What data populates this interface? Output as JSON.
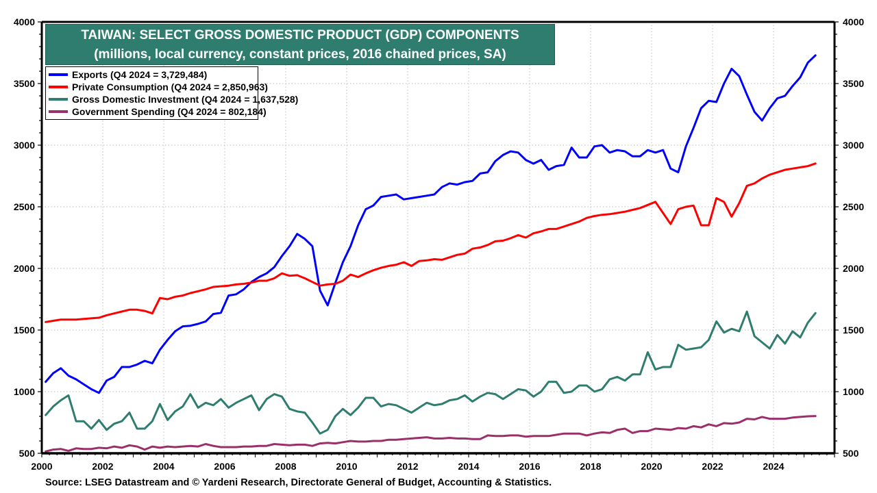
{
  "chart_data": {
    "type": "line",
    "title": "TAIWAN: SELECT GROSS DOMESTIC PRODUCT (GDP) COMPONENTS",
    "subtitle": "(millions, local currency, constant prices, 2016 chained prices, SA)",
    "xlabel": "",
    "ylabel": "",
    "x_start": 2000,
    "frequency": "quarterly",
    "xlim": [
      2000,
      2026
    ],
    "ylim": [
      500,
      4000
    ],
    "x_ticks": [
      "2000",
      "2002",
      "2004",
      "2006",
      "2008",
      "2010",
      "2012",
      "2014",
      "2016",
      "2018",
      "2020",
      "2022",
      "2024"
    ],
    "y_ticks": [
      "500",
      "1000",
      "1500",
      "2000",
      "2500",
      "3000",
      "3500",
      "4000"
    ],
    "y_tick_values": [
      500,
      1000,
      1500,
      2000,
      2500,
      3000,
      3500,
      4000
    ],
    "x_tick_values": [
      2000,
      2002,
      2004,
      2006,
      2008,
      2010,
      2012,
      2014,
      2016,
      2018,
      2020,
      2022,
      2024
    ],
    "grid": true,
    "legend_position": "top-left",
    "series": [
      {
        "name": "Exports (Q4 2024 = 3,729,484)",
        "color": "#0000ff",
        "values": [
          1080,
          1150,
          1190,
          1130,
          1100,
          1060,
          1020,
          990,
          1090,
          1120,
          1200,
          1200,
          1220,
          1250,
          1230,
          1340,
          1420,
          1490,
          1530,
          1535,
          1550,
          1570,
          1630,
          1640,
          1780,
          1790,
          1830,
          1890,
          1930,
          1960,
          2010,
          2100,
          2180,
          2280,
          2240,
          2180,
          1820,
          1700,
          1880,
          2050,
          2180,
          2350,
          2480,
          2510,
          2580,
          2590,
          2600,
          2560,
          2570,
          2580,
          2590,
          2600,
          2660,
          2690,
          2680,
          2700,
          2710,
          2770,
          2780,
          2870,
          2920,
          2950,
          2940,
          2880,
          2850,
          2880,
          2800,
          2830,
          2840,
          2980,
          2900,
          2900,
          2990,
          3000,
          2940,
          2960,
          2950,
          2910,
          2910,
          2960,
          2940,
          2960,
          2810,
          2780,
          2990,
          3140,
          3300,
          3360,
          3350,
          3500,
          3620,
          3560,
          3410,
          3270,
          3200,
          3300,
          3380,
          3400,
          3480,
          3550,
          3670,
          3729
        ]
      },
      {
        "name": "Private Consumption (Q4 2024 = 2,850,963)",
        "color": "#ff0000",
        "values": [
          1565,
          1575,
          1585,
          1585,
          1585,
          1590,
          1595,
          1600,
          1620,
          1635,
          1650,
          1665,
          1665,
          1655,
          1635,
          1760,
          1750,
          1770,
          1780,
          1800,
          1815,
          1830,
          1850,
          1855,
          1860,
          1870,
          1875,
          1885,
          1900,
          1900,
          1920,
          1960,
          1940,
          1945,
          1920,
          1890,
          1860,
          1870,
          1875,
          1900,
          1950,
          1930,
          1960,
          1985,
          2005,
          2020,
          2030,
          2050,
          2020,
          2060,
          2065,
          2075,
          2070,
          2090,
          2110,
          2120,
          2160,
          2170,
          2190,
          2220,
          2225,
          2245,
          2270,
          2250,
          2285,
          2300,
          2320,
          2320,
          2340,
          2360,
          2380,
          2410,
          2425,
          2435,
          2440,
          2450,
          2460,
          2475,
          2490,
          2515,
          2540,
          2450,
          2360,
          2480,
          2500,
          2510,
          2350,
          2350,
          2570,
          2540,
          2420,
          2530,
          2670,
          2690,
          2730,
          2760,
          2780,
          2800,
          2810,
          2820,
          2830,
          2851
        ]
      },
      {
        "name": "Gross Domestic Investment (Q4 2024 = 1,637,528)",
        "color": "#2e7d6e",
        "values": [
          810,
          880,
          930,
          970,
          760,
          760,
          700,
          770,
          690,
          740,
          760,
          830,
          700,
          700,
          760,
          900,
          770,
          840,
          880,
          980,
          870,
          910,
          890,
          940,
          870,
          910,
          940,
          970,
          850,
          940,
          980,
          960,
          860,
          840,
          830,
          750,
          660,
          690,
          800,
          860,
          810,
          870,
          950,
          950,
          880,
          900,
          890,
          860,
          830,
          870,
          910,
          890,
          900,
          930,
          940,
          970,
          920,
          960,
          990,
          980,
          940,
          980,
          1020,
          1010,
          960,
          1000,
          1080,
          1080,
          990,
          1000,
          1050,
          1050,
          1000,
          1020,
          1100,
          1120,
          1090,
          1140,
          1140,
          1320,
          1180,
          1200,
          1200,
          1380,
          1340,
          1350,
          1360,
          1420,
          1570,
          1480,
          1510,
          1490,
          1650,
          1450,
          1400,
          1350,
          1460,
          1390,
          1490,
          1440,
          1560,
          1638
        ]
      },
      {
        "name": "Government Spending (Q4 2024 = 802,184)",
        "color": "#9b2f6a",
        "values": [
          515,
          530,
          535,
          520,
          540,
          535,
          535,
          545,
          540,
          555,
          545,
          565,
          555,
          530,
          555,
          545,
          555,
          550,
          555,
          560,
          555,
          575,
          560,
          550,
          550,
          550,
          555,
          555,
          560,
          560,
          575,
          570,
          565,
          570,
          570,
          560,
          580,
          585,
          580,
          590,
          600,
          595,
          595,
          600,
          600,
          610,
          610,
          615,
          620,
          625,
          630,
          620,
          620,
          625,
          620,
          620,
          615,
          615,
          645,
          640,
          640,
          645,
          645,
          635,
          640,
          640,
          640,
          650,
          660,
          660,
          660,
          645,
          660,
          670,
          665,
          690,
          700,
          665,
          680,
          680,
          700,
          695,
          690,
          705,
          700,
          720,
          710,
          735,
          720,
          745,
          740,
          750,
          780,
          775,
          795,
          780,
          780,
          780,
          790,
          795,
          800,
          802
        ]
      }
    ]
  },
  "title": {
    "line1": "TAIWAN: SELECT GROSS DOMESTIC PRODUCT (GDP) COMPONENTS",
    "line2": "(millions, local currency, constant prices, 2016 chained prices, SA)"
  },
  "legend": [
    {
      "label": "Exports (Q4 2024 = 3,729,484)",
      "color": "#0000ff"
    },
    {
      "label": "Private Consumption (Q4 2024 = 2,850,963)",
      "color": "#ff0000"
    },
    {
      "label": "Gross Domestic Investment (Q4 2024 = 1,637,528)",
      "color": "#2e7d6e"
    },
    {
      "label": "Government Spending (Q4 2024 = 802,184)",
      "color": "#9b2f6a"
    }
  ],
  "source": "Source: LSEG Datastream and © Yardeni Research, Directorate General of Budget, Accounting & Statistics."
}
